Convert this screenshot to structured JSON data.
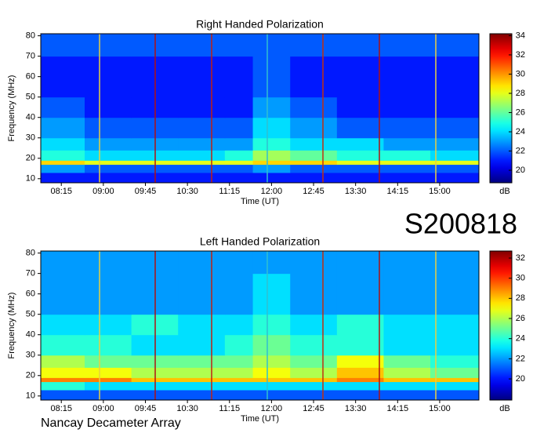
{
  "observation_id": "S200818",
  "footer": "Nancay Decameter Array",
  "chart_data": [
    {
      "type": "heatmap",
      "title": "Right Handed Polarization",
      "xlabel": "Time (UT)",
      "ylabel": "Frequency (MHz)",
      "colorbar_label": "dB",
      "colormap": "jet",
      "xlim": [
        "07:53",
        "15:42"
      ],
      "xticks": [
        "08:15",
        "09:00",
        "09:45",
        "10:30",
        "11:15",
        "12:00",
        "12:45",
        "13:30",
        "14:15",
        "15:00"
      ],
      "ylim": [
        8,
        81
      ],
      "yticks": [
        10,
        20,
        30,
        40,
        50,
        60,
        70,
        80
      ],
      "clim": [
        18.7,
        34.2
      ],
      "cticks": [
        20,
        22,
        24,
        26,
        28,
        30,
        32,
        34
      ],
      "x_edges": [
        "07:53",
        "08:40",
        "09:30",
        "10:20",
        "11:10",
        "11:40",
        "12:20",
        "13:10",
        "14:00",
        "14:50",
        "15:42"
      ],
      "y_edges": [
        8,
        13,
        17,
        19,
        24,
        30,
        40,
        50,
        70,
        81
      ],
      "z": [
        [
          21,
          21,
          21,
          21,
          21,
          21,
          21,
          21,
          21,
          21
        ],
        [
          23,
          22,
          22,
          22,
          22,
          23,
          22,
          22,
          22,
          22
        ],
        [
          29,
          28,
          28,
          28,
          28,
          29,
          29,
          28,
          28,
          28
        ],
        [
          25,
          24,
          24,
          24,
          25,
          27,
          26,
          25,
          25,
          24
        ],
        [
          24,
          23,
          23,
          23,
          23,
          25,
          24,
          24,
          23,
          23
        ],
        [
          23,
          22,
          22,
          22,
          22,
          24,
          23,
          22,
          22,
          22
        ],
        [
          22,
          21,
          21,
          21,
          21,
          23,
          22,
          21,
          21,
          21
        ],
        [
          21,
          21,
          21,
          21,
          21,
          22,
          21,
          21,
          21,
          21
        ],
        [
          22,
          22,
          22,
          22,
          22,
          22,
          22,
          22,
          22,
          22
        ]
      ]
    },
    {
      "type": "heatmap",
      "title": "Left Handed Polarization",
      "xlabel": "Time (UT)",
      "ylabel": "Frequency (MHz)",
      "colorbar_label": "dB",
      "colormap": "jet",
      "xlim": [
        "07:53",
        "15:42"
      ],
      "xticks": [
        "08:15",
        "09:00",
        "09:45",
        "10:30",
        "11:15",
        "12:00",
        "12:45",
        "13:30",
        "14:15",
        "15:00"
      ],
      "ylim": [
        8,
        81
      ],
      "yticks": [
        10,
        20,
        30,
        40,
        50,
        60,
        70,
        80
      ],
      "clim": [
        17.9,
        32.7
      ],
      "cticks": [
        20,
        22,
        24,
        26,
        28,
        30,
        32
      ],
      "x_edges": [
        "07:53",
        "08:40",
        "09:30",
        "10:20",
        "11:10",
        "11:40",
        "12:20",
        "13:10",
        "14:00",
        "14:50",
        "15:42"
      ],
      "y_edges": [
        8,
        13,
        17,
        19,
        24,
        30,
        40,
        50,
        70,
        81
      ],
      "z": [
        [
          21,
          21,
          21,
          21,
          21,
          21,
          21,
          21,
          21,
          21
        ],
        [
          24,
          23,
          23,
          23,
          23,
          23,
          23,
          23,
          23,
          23
        ],
        [
          29,
          29,
          28,
          28,
          28,
          28,
          28,
          29,
          28,
          28
        ],
        [
          27,
          27,
          26,
          26,
          26,
          27,
          26,
          28,
          26,
          25
        ],
        [
          26,
          25,
          25,
          25,
          25,
          26,
          25,
          27,
          25,
          24
        ],
        [
          24,
          24,
          23,
          23,
          24,
          25,
          24,
          24,
          23,
          23
        ],
        [
          23,
          23,
          24,
          23,
          23,
          24,
          23,
          24,
          23,
          23
        ],
        [
          22,
          22,
          22,
          22,
          22,
          23,
          22,
          22,
          22,
          22
        ],
        [
          22,
          22,
          22,
          22,
          22,
          22,
          22,
          22,
          22,
          22
        ]
      ]
    }
  ]
}
